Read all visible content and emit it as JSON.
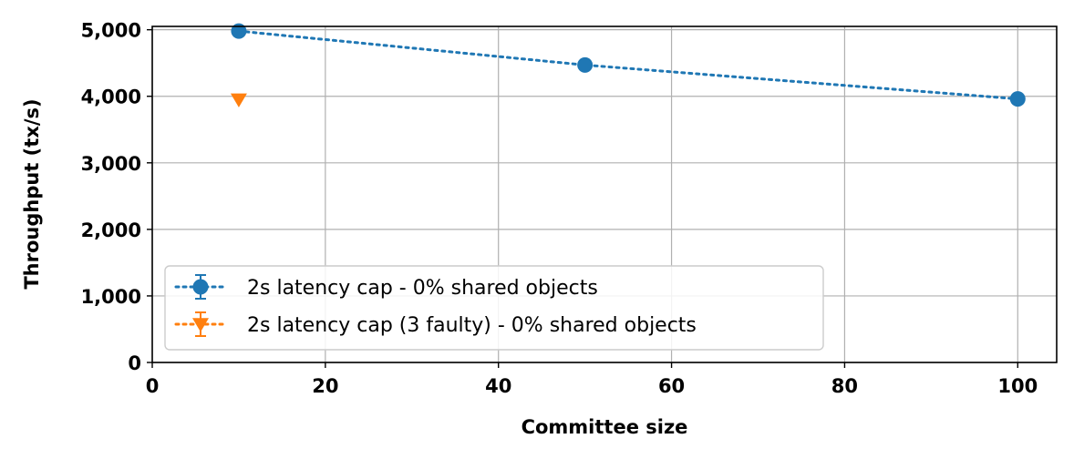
{
  "chart_data": {
    "type": "line",
    "xlabel": "Committee size",
    "ylabel": "Throughput (tx/s)",
    "xlim": [
      0,
      104.5
    ],
    "ylim": [
      0,
      5050
    ],
    "x_ticks": [
      0,
      20,
      40,
      60,
      80,
      100
    ],
    "x_tick_labels": [
      "0",
      "20",
      "40",
      "60",
      "80",
      "100"
    ],
    "y_ticks": [
      0,
      1000,
      2000,
      3000,
      4000,
      5000
    ],
    "y_tick_labels": [
      "0",
      "1,000",
      "2,000",
      "3,000",
      "4,000",
      "5,000"
    ],
    "grid": true,
    "legend_position": "lower-left",
    "series": [
      {
        "name": "2s latency cap - 0% shared objects",
        "color": "#1f77b4",
        "marker": "circle",
        "line_style": "dotted",
        "x": [
          10,
          50,
          100
        ],
        "y": [
          4980,
          4470,
          3960
        ]
      },
      {
        "name": "2s latency cap (3 faulty) - 0% shared objects",
        "color": "#ff7f0e",
        "marker": "triangle-down",
        "line_style": "dotted",
        "x": [
          10
        ],
        "y": [
          3950
        ]
      }
    ]
  }
}
